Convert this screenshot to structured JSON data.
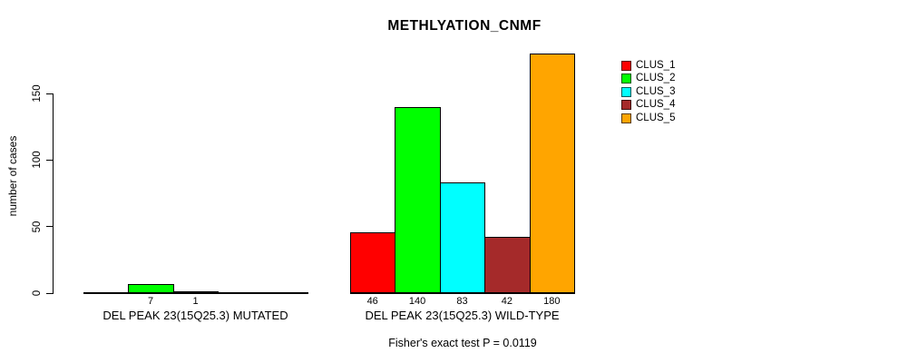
{
  "chart_data": {
    "type": "bar",
    "title": "METHLYATION_CNMF",
    "xlabel": "",
    "ylabel": "number of cases",
    "ylim": [
      0,
      180
    ],
    "yticks": [
      0,
      50,
      100,
      150
    ],
    "grid": false,
    "legend_position": "top-right",
    "categories": [
      "DEL PEAK 23(15Q25.3) MUTATED",
      "DEL PEAK 23(15Q25.3) WILD-TYPE"
    ],
    "series": [
      {
        "name": "CLUS_1",
        "color": "#FF0000",
        "values": [
          0,
          46
        ]
      },
      {
        "name": "CLUS_2",
        "color": "#00FF00",
        "values": [
          7,
          140
        ]
      },
      {
        "name": "CLUS_3",
        "color": "#00FFFF",
        "values": [
          1,
          83
        ]
      },
      {
        "name": "CLUS_4",
        "color": "#A52A2A",
        "values": [
          0,
          42
        ]
      },
      {
        "name": "CLUS_5",
        "color": "#FFA500",
        "values": [
          0,
          180
        ]
      }
    ],
    "bar_value_labels": {
      "mutated": [
        7,
        1
      ],
      "wild_type": [
        46,
        140,
        83,
        42,
        180
      ]
    }
  },
  "footer": {
    "caption": "Fisher's exact test P = 0.0119"
  }
}
